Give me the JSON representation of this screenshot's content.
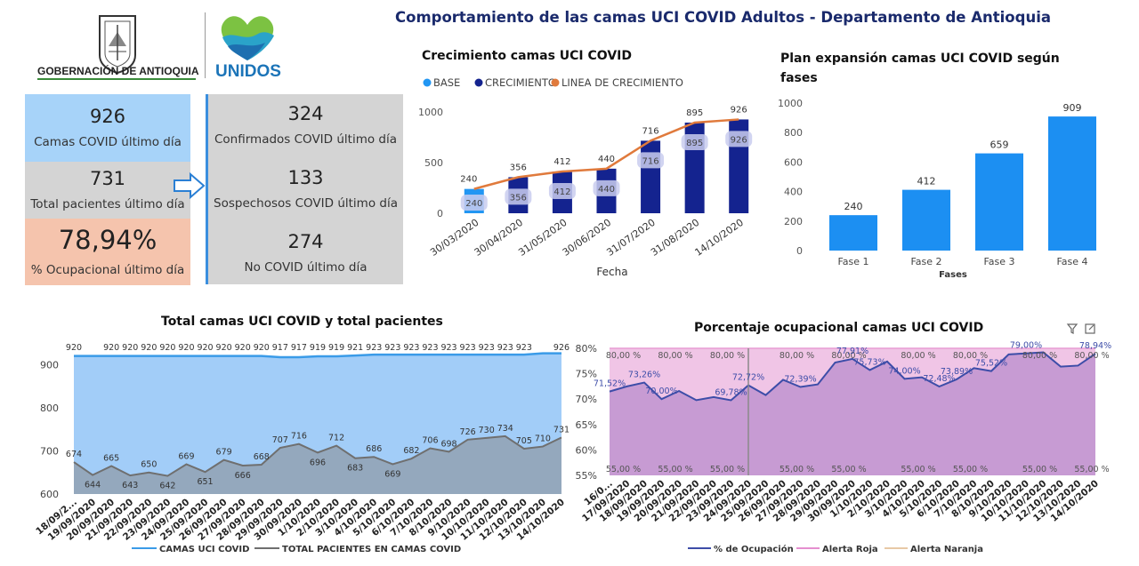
{
  "header": {
    "title": "Comportamiento de las camas UCI COVID  Adultos - Departamento de Antioquia",
    "gov_label": "GOBERNACIÓN DE ANTIOQUIA",
    "unidos_label": "UNIDOS"
  },
  "kpis": {
    "camas": {
      "value": "926",
      "label": "Camas COVID último día"
    },
    "pacientes": {
      "value": "731",
      "label": "Total pacientes último día"
    },
    "ocupacional": {
      "value": "78,94%",
      "label": "% Ocupacional último día"
    },
    "confirmados": {
      "value": "324",
      "label": "Confirmados COVID último día"
    },
    "sospechosos": {
      "value": "133",
      "label": "Sospechosos COVID último día"
    },
    "no_covid": {
      "value": "274",
      "label": "No COVID último día"
    }
  },
  "colors": {
    "base": "#2196f3",
    "crecimiento": "#14238f",
    "linea": "#e07a3c",
    "kpi_blue": "#a7d3f9",
    "kpi_gray": "#d4d4d4",
    "kpi_orange": "#f5c4ad",
    "fases_bar": "#1c8ff2",
    "area_camas": "#a2cdf8",
    "line_camas": "#3a9be8",
    "area_pac": "#94a8bd",
    "line_pac": "#6f6f6f",
    "roja": "#f0c5e6",
    "ocup_fill": "#c79bd3",
    "ocup_line": "#3d4da8"
  },
  "charts": {
    "crecimiento": {
      "title": "Crecimiento camas UCI COVID",
      "xlabel": "Fecha"
    },
    "fases": {
      "title_line1": "Plan expansión camas UCI COVID según",
      "title_line2": "fases",
      "xlabel": "Fases"
    },
    "total": {
      "title": "Total camas UCI COVID y total pacientes"
    },
    "ocupacional": {
      "title": "Porcentaje ocupacional camas UCI COVID"
    }
  },
  "chart_data": [
    {
      "type": "bar",
      "title": "Crecimiento camas UCI COVID",
      "xlabel": "Fecha",
      "ylabel": "",
      "ylim": [
        0,
        1000
      ],
      "yticks": [
        0,
        500,
        1000
      ],
      "categories": [
        "30/03/2020",
        "30/04/2020",
        "31/05/2020",
        "30/06/2020",
        "31/07/2020",
        "31/08/2020",
        "14/10/2020"
      ],
      "series": [
        {
          "name": "BASE",
          "values": [
            240,
            0,
            0,
            0,
            0,
            0,
            0
          ]
        },
        {
          "name": "CRECIMIENTO",
          "values": [
            0,
            356,
            412,
            440,
            716,
            895,
            926
          ]
        },
        {
          "name": "LINEA DE CRECIMIENTO",
          "values": [
            240,
            356,
            412,
            440,
            716,
            895,
            926
          ]
        }
      ],
      "legend": "top-left"
    },
    {
      "type": "bar",
      "title": "Plan expansión camas UCI COVID según fases",
      "xlabel": "Fases",
      "ylabel": "",
      "ylim": [
        0,
        1000
      ],
      "yticks": [
        0,
        200,
        400,
        600,
        800,
        1000
      ],
      "categories": [
        "Fase 1",
        "Fase 2",
        "Fase 3",
        "Fase 4"
      ],
      "values": [
        240,
        412,
        659,
        909
      ]
    },
    {
      "type": "area",
      "title": "Total camas UCI COVID y total pacientes",
      "xlabel": "",
      "ylabel": "",
      "ylim": [
        600,
        950
      ],
      "yticks": [
        600,
        700,
        800,
        900
      ],
      "x": [
        "18/09/2...",
        "19/09/2020",
        "20/09/2020",
        "21/09/2020",
        "22/09/2020",
        "23/09/2020",
        "24/09/2020",
        "25/09/2020",
        "26/09/2020",
        "27/09/2020",
        "28/09/2020",
        "29/09/2020",
        "30/09/2020",
        "1/10/2020",
        "2/10/2020",
        "3/10/2020",
        "4/10/2020",
        "5/10/2020",
        "6/10/2020",
        "7/10/2020",
        "8/10/2020",
        "9/10/2020",
        "10/10/2020",
        "11/10/2020",
        "12/10/2020",
        "13/10/2020",
        "14/10/2020"
      ],
      "series": [
        {
          "name": "CAMAS UCI COVID",
          "values": [
            920,
            920,
            920,
            920,
            920,
            920,
            920,
            920,
            920,
            920,
            920,
            917,
            917,
            919,
            919,
            921,
            923,
            923,
            923,
            923,
            923,
            923,
            923,
            923,
            923,
            926,
            926
          ],
          "labels": [
            "920",
            "",
            "920",
            "920",
            "920",
            "920",
            "920",
            "920",
            "920",
            "920",
            "920",
            "917",
            "917",
            "919",
            "919",
            "921",
            "923",
            "923",
            "923",
            "923",
            "923",
            "923",
            "923",
            "923",
            "923",
            "",
            "926"
          ]
        },
        {
          "name": "TOTAL PACIENTES EN CAMAS COVID",
          "values": [
            674,
            644,
            665,
            643,
            650,
            642,
            669,
            651,
            679,
            666,
            668,
            707,
            716,
            696,
            712,
            683,
            686,
            669,
            682,
            706,
            698,
            726,
            730,
            734,
            705,
            710,
            731
          ],
          "labels": [
            "674",
            "644",
            "665",
            "643",
            "650",
            "642",
            "669",
            "651",
            "679",
            "666",
            "668",
            "707",
            "716",
            "696",
            "712",
            "683",
            "686",
            "669",
            "682",
            "706",
            "698",
            "726",
            "730",
            "734",
            "705",
            "710",
            "731"
          ]
        }
      ],
      "legend": "bottom"
    },
    {
      "type": "area",
      "title": "Porcentaje ocupacional camas UCI COVID",
      "xlabel": "",
      "ylabel": "",
      "ylim": [
        55,
        80
      ],
      "yticks": [
        "55%",
        "60%",
        "65%",
        "70%",
        "75%",
        "80%"
      ],
      "x": [
        "16/0...",
        "17/09/2020",
        "18/09/2020",
        "19/09/2020",
        "20/09/2020",
        "21/09/2020",
        "22/09/2020",
        "23/09/2020",
        "24/09/2020",
        "25/09/2020",
        "26/09/2020",
        "27/09/2020",
        "28/09/2020",
        "29/09/2020",
        "30/09/2020",
        "1/10/2020",
        "2/10/2020",
        "3/10/2020",
        "4/10/2020",
        "5/10/2020",
        "6/10/2020",
        "7/10/2020",
        "8/10/2020",
        "9/10/2020",
        "10/10/2020",
        "11/10/2020",
        "12/10/2020",
        "13/10/2020",
        "14/10/2020"
      ],
      "series": [
        {
          "name": "% de Ocupación",
          "values": [
            71.5,
            72.5,
            73.26,
            70.0,
            71.6,
            69.8,
            70.4,
            69.78,
            72.72,
            70.8,
            73.8,
            72.39,
            72.9,
            77.2,
            77.91,
            75.73,
            77.4,
            74.0,
            74.3,
            72.48,
            73.89,
            76.1,
            75.52,
            78.8,
            79.0,
            79.2,
            76.4,
            76.6,
            78.94
          ],
          "labels": [
            "71,52%",
            "",
            "73,26%",
            "70,00%",
            "",
            "",
            "",
            "69,78%",
            "72,72%",
            "",
            "",
            "72,39%",
            "",
            "",
            "77,91%",
            "75,73%",
            "",
            "74,00%",
            "",
            "72,48%",
            "73,89%",
            "",
            "75,52%",
            "",
            "79,00%",
            "",
            "",
            "",
            "78,94%"
          ]
        },
        {
          "name": "Alerta Roja",
          "values": [
            80,
            80,
            80,
            80,
            80,
            80,
            80,
            80,
            80,
            80,
            80,
            80,
            80,
            80,
            80,
            80,
            80,
            80,
            80,
            80,
            80,
            80,
            80,
            80,
            80,
            80,
            80,
            80,
            80
          ],
          "labels": [
            "80,00 %",
            "80,00 %",
            "80,00 %",
            "80,00 %",
            "80,00 %",
            "80,00 %",
            "80,00 %",
            "80,00 %",
            "80,00 %"
          ]
        },
        {
          "name": "Alerta Naranja",
          "values": [
            55,
            55,
            55,
            55,
            55,
            55,
            55,
            55,
            55,
            55,
            55,
            55,
            55,
            55,
            55,
            55,
            55,
            55,
            55,
            55,
            55,
            55,
            55,
            55,
            55,
            55,
            55,
            55,
            55
          ],
          "labels": [
            "55,00 %",
            "55,00 %",
            "55,00 %",
            "55,00 %",
            "55,00 %",
            "55,00 %",
            "55,00 %",
            "55,00 %",
            "55,00 %"
          ]
        }
      ],
      "legend": "bottom"
    }
  ]
}
